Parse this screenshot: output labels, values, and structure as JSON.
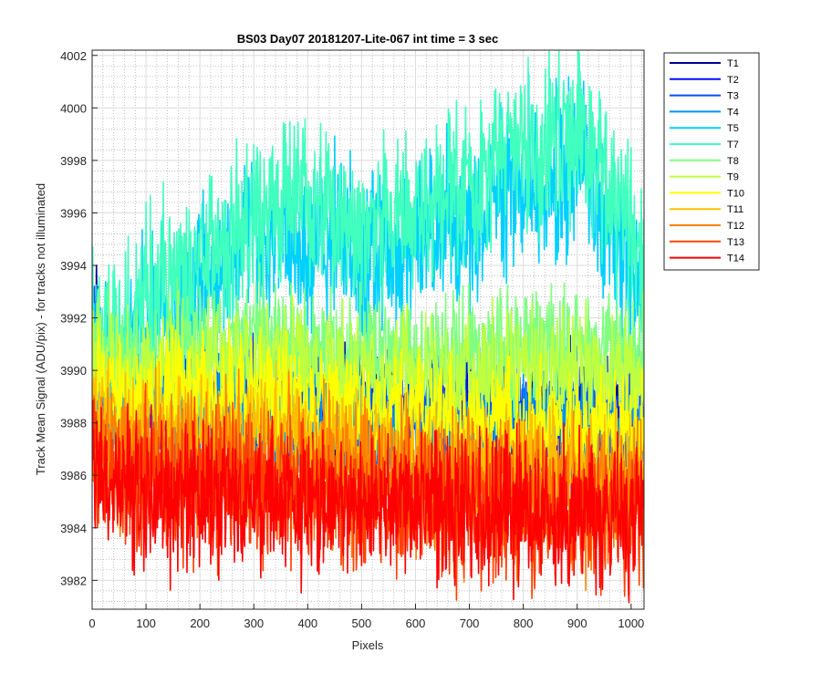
{
  "chart_data": {
    "type": "line",
    "title": "BS03 Day07 20181207-Lite-067 int time = 3 sec",
    "xlabel": "Pixels",
    "ylabel": "Track Mean Signal (ADU/pix) - for tracks not illuminated",
    "xlim": [
      0,
      1024
    ],
    "ylim": [
      3980.9,
      4002.2
    ],
    "x_ticks": [
      0,
      100,
      200,
      300,
      400,
      500,
      600,
      700,
      800,
      900,
      1000
    ],
    "y_ticks": [
      3982,
      3984,
      3986,
      3988,
      3990,
      3992,
      3994,
      3996,
      3998,
      4000,
      4002
    ],
    "grid": true,
    "minor_grid": true,
    "legend_position": "outside-top-right",
    "series": [
      {
        "name": "T1",
        "color": "#00008f",
        "x": [
          0,
          20,
          50,
          100,
          200,
          300,
          400,
          500,
          600,
          700,
          800,
          900,
          950,
          1000,
          1024
        ],
        "values": [
          3992.5,
          3990.7,
          3989.4,
          3989.0,
          3988.6,
          3988.5,
          3988.4,
          3988.3,
          3988.3,
          3988.2,
          3988.2,
          3988.2,
          3988.1,
          3988.0,
          3988.0
        ]
      },
      {
        "name": "T2",
        "color": "#0010ff",
        "x": [
          0,
          20,
          50,
          100,
          200,
          300,
          400,
          500,
          600,
          700,
          800,
          900,
          950,
          1000,
          1024
        ],
        "values": [
          3992.0,
          3990.3,
          3989.2,
          3988.9,
          3988.5,
          3988.4,
          3988.3,
          3988.2,
          3988.2,
          3988.1,
          3988.1,
          3988.1,
          3988.0,
          3987.9,
          3987.9
        ]
      },
      {
        "name": "T3",
        "color": "#0050ff",
        "x": [
          0,
          20,
          50,
          100,
          200,
          300,
          400,
          500,
          600,
          700,
          800,
          900,
          950,
          1000,
          1024
        ],
        "values": [
          3991.6,
          3990.0,
          3989.0,
          3988.7,
          3988.4,
          3988.3,
          3988.2,
          3988.1,
          3988.1,
          3988.0,
          3988.0,
          3988.0,
          3987.9,
          3987.8,
          3987.8
        ]
      },
      {
        "name": "T4",
        "color": "#0090ff",
        "x": [
          0,
          20,
          50,
          100,
          200,
          300,
          400,
          500,
          600,
          700,
          800,
          900,
          950,
          1000,
          1024
        ],
        "values": [
          3991.2,
          3989.8,
          3988.8,
          3988.5,
          3988.3,
          3988.2,
          3988.1,
          3988.0,
          3988.0,
          3987.9,
          3987.9,
          3987.9,
          3987.8,
          3987.7,
          3987.7
        ]
      },
      {
        "name": "T5",
        "color": "#00d0ff",
        "x": [
          0,
          20,
          50,
          100,
          150,
          200,
          250,
          300,
          350,
          400,
          450,
          500,
          550,
          600,
          650,
          700,
          750,
          800,
          850,
          900,
          930,
          960,
          990,
          1010,
          1024
        ],
        "values": [
          3991.0,
          3990.3,
          3990.2,
          3991.5,
          3992.3,
          3993.2,
          3994.0,
          3994.6,
          3994.9,
          3995.0,
          3994.8,
          3994.6,
          3994.6,
          3994.9,
          3995.4,
          3995.8,
          3996.3,
          3997.0,
          3997.6,
          3997.8,
          3997.0,
          3995.5,
          3994.0,
          3992.8,
          3992.3
        ]
      },
      {
        "name": "T7",
        "color": "#40ffbf",
        "x": [
          0,
          20,
          50,
          100,
          150,
          200,
          250,
          300,
          350,
          400,
          450,
          500,
          550,
          600,
          650,
          700,
          750,
          800,
          850,
          900,
          930,
          960,
          990,
          1010,
          1024
        ],
        "values": [
          3991.6,
          3990.9,
          3991.0,
          3992.4,
          3993.4,
          3994.4,
          3995.2,
          3996.0,
          3996.4,
          3996.4,
          3995.9,
          3995.6,
          3995.6,
          3996.1,
          3996.7,
          3997.2,
          3997.8,
          3998.4,
          3998.9,
          3999.0,
          3998.2,
          3996.8,
          3995.4,
          3994.2,
          3993.6
        ]
      },
      {
        "name": "T8",
        "color": "#80ff80",
        "x": [
          0,
          50,
          100,
          200,
          300,
          400,
          500,
          600,
          700,
          800,
          900,
          1000,
          1024
        ],
        "values": [
          3991.5,
          3990.0,
          3990.5,
          3991.0,
          3991.1,
          3990.9,
          3990.7,
          3990.6,
          3990.8,
          3991.0,
          3990.9,
          3990.6,
          3990.5
        ]
      },
      {
        "name": "T9",
        "color": "#bfff40",
        "x": [
          0,
          50,
          100,
          200,
          300,
          400,
          500,
          600,
          700,
          800,
          900,
          1000,
          1024
        ],
        "values": [
          3991.0,
          3989.5,
          3989.8,
          3990.2,
          3990.3,
          3990.1,
          3989.9,
          3989.8,
          3990.0,
          3990.1,
          3990.0,
          3989.8,
          3989.7
        ]
      },
      {
        "name": "T10",
        "color": "#ffff00",
        "x": [
          0,
          50,
          100,
          200,
          300,
          400,
          500,
          600,
          700,
          800,
          900,
          1000,
          1024
        ],
        "values": [
          3989.8,
          3988.8,
          3988.9,
          3989.1,
          3989.0,
          3988.8,
          3988.5,
          3988.2,
          3988.0,
          3987.8,
          3987.6,
          3987.5,
          3987.5
        ]
      },
      {
        "name": "T11",
        "color": "#ffbf00",
        "x": [
          0,
          50,
          100,
          200,
          300,
          400,
          500,
          600,
          700,
          800,
          900,
          1000,
          1024
        ],
        "values": [
          3988.6,
          3987.6,
          3987.7,
          3987.7,
          3987.6,
          3987.3,
          3987.0,
          3986.7,
          3986.5,
          3986.3,
          3986.1,
          3986.0,
          3986.0
        ]
      },
      {
        "name": "T12",
        "color": "#ff8000",
        "x": [
          0,
          50,
          100,
          200,
          300,
          400,
          500,
          600,
          700,
          800,
          900,
          1000,
          1024
        ],
        "values": [
          3987.6,
          3986.7,
          3986.7,
          3986.6,
          3986.5,
          3986.3,
          3986.0,
          3985.8,
          3985.6,
          3985.4,
          3985.3,
          3985.2,
          3985.2
        ]
      },
      {
        "name": "T13",
        "color": "#ff4000",
        "x": [
          0,
          50,
          100,
          200,
          300,
          400,
          500,
          600,
          700,
          800,
          900,
          1000,
          1024
        ],
        "values": [
          3986.8,
          3985.9,
          3985.8,
          3985.7,
          3985.6,
          3985.4,
          3985.2,
          3985.0,
          3984.9,
          3984.7,
          3984.6,
          3984.5,
          3984.5
        ]
      },
      {
        "name": "T14",
        "color": "#ff0000",
        "x": [
          0,
          50,
          100,
          200,
          300,
          400,
          500,
          600,
          700,
          800,
          900,
          1000,
          1024
        ],
        "values": [
          3986.2,
          3985.4,
          3985.3,
          3985.2,
          3985.1,
          3985.0,
          3984.9,
          3984.8,
          3984.6,
          3984.5,
          3984.4,
          3984.3,
          3984.3
        ]
      }
    ]
  }
}
